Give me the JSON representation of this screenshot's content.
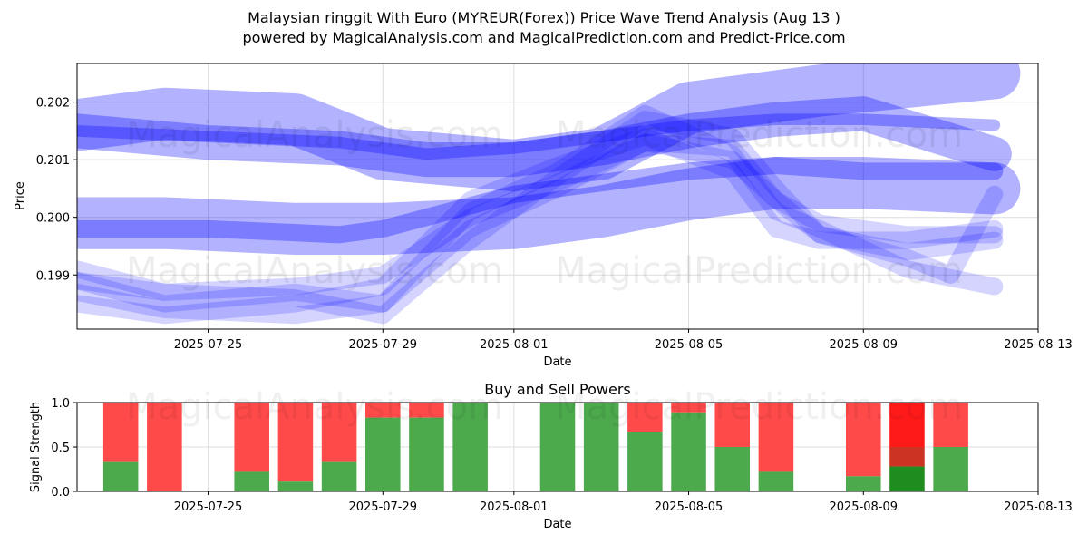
{
  "header": {
    "title_line1": "Malaysian ringgit With Euro (MYREUR(Forex)) Price Wave Trend Analysis (Aug 13 )",
    "title_line2": "powered by MagicalAnalysis.com and MagicalPrediction.com and Predict-Price.com"
  },
  "watermarks": [
    "MagicalAnalysis.com",
    "MagicalPrediction.com"
  ],
  "colors": {
    "band": "#0000ff",
    "buy": "#4caa4c",
    "sell": "#ff4a4a",
    "sell_strong": "#ff1a1a",
    "sell_dark": "#cc3322",
    "buy_strong": "#1e8c1e",
    "grid": "#dddddd"
  },
  "chart_data": [
    {
      "type": "area",
      "title": "",
      "xlabel": "Date",
      "ylabel": "Price",
      "xlim": [
        "2025-07-22",
        "2025-08-13"
      ],
      "ylim": [
        0.19806,
        0.20267
      ],
      "x_ticks": [
        "2025-07-25",
        "2025-07-29",
        "2025-08-01",
        "2025-08-05",
        "2025-08-09",
        "2025-08-13"
      ],
      "y_ticks": [
        0.199,
        0.2,
        0.201,
        0.202
      ],
      "y_tick_labels": [
        "0.199",
        "0.200",
        "0.201",
        "0.202"
      ],
      "grid": true,
      "series": [
        {
          "width": 0.0009,
          "points": [
            [
              "2025-07-22",
              0.2016
            ],
            [
              "2025-07-24",
              0.2018
            ],
            [
              "2025-07-27",
              0.2017
            ],
            [
              "2025-07-29",
              0.2011
            ],
            [
              "2025-08-01",
              0.2009
            ],
            [
              "2025-08-03",
              0.2011
            ],
            [
              "2025-08-05",
              0.2019
            ],
            [
              "2025-08-08",
              0.2022
            ],
            [
              "2025-08-12",
              0.2025
            ]
          ]
        },
        {
          "width": 0.0006,
          "points": [
            [
              "2025-07-22",
              0.2015
            ],
            [
              "2025-07-25",
              0.2013
            ],
            [
              "2025-07-28",
              0.2012
            ],
            [
              "2025-07-30",
              0.201
            ],
            [
              "2025-08-01",
              0.201
            ],
            [
              "2025-08-03",
              0.2012
            ],
            [
              "2025-08-05",
              0.2015
            ],
            [
              "2025-08-07",
              0.2017
            ],
            [
              "2025-08-09",
              0.2018
            ],
            [
              "2025-08-12",
              0.2011
            ]
          ]
        },
        {
          "width": 0.0002,
          "points": [
            [
              "2025-07-22",
              0.2015
            ],
            [
              "2025-07-25",
              0.2014
            ],
            [
              "2025-07-28",
              0.2013
            ],
            [
              "2025-07-30",
              0.2011
            ],
            [
              "2025-08-01",
              0.2012
            ],
            [
              "2025-08-03",
              0.2014
            ],
            [
              "2025-08-05",
              0.2016
            ],
            [
              "2025-08-07",
              0.2017
            ],
            [
              "2025-08-09",
              0.2017
            ],
            [
              "2025-08-12",
              0.2016
            ]
          ]
        },
        {
          "width": 0.0009,
          "points": [
            [
              "2025-07-22",
              0.1999
            ],
            [
              "2025-07-24",
              0.1999
            ],
            [
              "2025-07-27",
              0.1998
            ],
            [
              "2025-07-29",
              0.1998
            ],
            [
              "2025-08-01",
              0.1999
            ],
            [
              "2025-08-03",
              0.2001
            ],
            [
              "2025-08-05",
              0.2004
            ],
            [
              "2025-08-07",
              0.2006
            ],
            [
              "2025-08-09",
              0.2006
            ],
            [
              "2025-08-12",
              0.2005
            ]
          ]
        },
        {
          "width": 0.0003,
          "points": [
            [
              "2025-07-22",
              0.1998
            ],
            [
              "2025-07-25",
              0.1998
            ],
            [
              "2025-07-28",
              0.1997
            ],
            [
              "2025-07-29",
              0.1998
            ],
            [
              "2025-08-01",
              0.2004
            ],
            [
              "2025-08-03",
              0.2006
            ],
            [
              "2025-08-05",
              0.2008
            ],
            [
              "2025-08-07",
              0.2009
            ],
            [
              "2025-08-09",
              0.2008
            ],
            [
              "2025-08-12",
              0.2008
            ]
          ]
        },
        {
          "width": 0.0003,
          "points": [
            [
              "2025-07-22",
              0.1989
            ],
            [
              "2025-07-24",
              0.1985
            ],
            [
              "2025-07-27",
              0.1987
            ],
            [
              "2025-07-29",
              0.1985
            ],
            [
              "2025-07-31",
              0.1998
            ],
            [
              "2025-08-02",
              0.2005
            ],
            [
              "2025-08-04",
              0.2013
            ],
            [
              "2025-08-06",
              0.2012
            ],
            [
              "2025-08-07",
              0.2003
            ],
            [
              "2025-08-08",
              0.1997
            ],
            [
              "2025-08-10",
              0.1993
            ],
            [
              "2025-08-11",
              0.199
            ],
            [
              "2025-08-12",
              0.2004
            ]
          ]
        },
        {
          "width": 0.0003,
          "points": [
            [
              "2025-07-22",
              0.1991
            ],
            [
              "2025-07-24",
              0.1987
            ],
            [
              "2025-07-27",
              0.1986
            ],
            [
              "2025-07-29",
              0.1983
            ],
            [
              "2025-07-31",
              0.1996
            ],
            [
              "2025-08-02",
              0.2007
            ],
            [
              "2025-08-04",
              0.2017
            ],
            [
              "2025-08-06",
              0.2014
            ],
            [
              "2025-08-07",
              0.2005
            ],
            [
              "2025-08-08",
              0.1997
            ],
            [
              "2025-08-10",
              0.1994
            ],
            [
              "2025-08-12",
              0.1996
            ]
          ]
        },
        {
          "width": 0.0003,
          "points": [
            [
              "2025-07-22",
              0.1987
            ],
            [
              "2025-07-24",
              0.1984
            ],
            [
              "2025-07-27",
              0.1983
            ],
            [
              "2025-07-29",
              0.1985
            ],
            [
              "2025-07-31",
              0.2001
            ],
            [
              "2025-08-02",
              0.2008
            ],
            [
              "2025-08-04",
              0.2018
            ],
            [
              "2025-08-06",
              0.2011
            ],
            [
              "2025-08-07",
              0.2001
            ],
            [
              "2025-08-08",
              0.1998
            ],
            [
              "2025-08-10",
              0.1991
            ],
            [
              "2025-08-12",
              0.1988
            ]
          ]
        },
        {
          "width": 0.0003,
          "points": [
            [
              "2025-07-22",
              0.1985
            ],
            [
              "2025-07-24",
              0.1983
            ],
            [
              "2025-07-27",
              0.1985
            ],
            [
              "2025-07-29",
              0.1988
            ],
            [
              "2025-07-31",
              0.2003
            ],
            [
              "2025-08-02",
              0.2009
            ],
            [
              "2025-08-04",
              0.2014
            ],
            [
              "2025-08-06",
              0.2008
            ],
            [
              "2025-08-07",
              0.1998
            ],
            [
              "2025-08-08",
              0.1996
            ],
            [
              "2025-08-10",
              0.1996
            ],
            [
              "2025-08-12",
              0.1998
            ]
          ]
        },
        {
          "width": 0.0003,
          "points": [
            [
              "2025-07-22",
              0.1989
            ],
            [
              "2025-07-24",
              0.1987
            ],
            [
              "2025-07-27",
              0.1988
            ],
            [
              "2025-07-29",
              0.199
            ],
            [
              "2025-07-31",
              0.2
            ],
            [
              "2025-08-02",
              0.2006
            ],
            [
              "2025-08-04",
              0.2013
            ],
            [
              "2025-08-06",
              0.201
            ],
            [
              "2025-08-07",
              0.2003
            ],
            [
              "2025-08-08",
              0.1999
            ],
            [
              "2025-08-10",
              0.1997
            ],
            [
              "2025-08-12",
              0.1997
            ]
          ]
        }
      ]
    },
    {
      "type": "bar",
      "title": "Buy and Sell Powers",
      "xlabel": "Date",
      "ylabel": "Signal Strength",
      "xlim": [
        "2025-07-22",
        "2025-08-13"
      ],
      "ylim": [
        0,
        1.0
      ],
      "x_ticks": [
        "2025-07-25",
        "2025-07-29",
        "2025-08-01",
        "2025-08-05",
        "2025-08-09",
        "2025-08-13"
      ],
      "y_ticks": [
        0.0,
        0.5,
        1.0
      ],
      "y_tick_labels": [
        "0.0",
        "0.5",
        "1.0"
      ],
      "grid": true,
      "stack": [
        "buy",
        "sell"
      ],
      "categories": [
        "2025-07-23",
        "2025-07-24",
        "2025-07-26",
        "2025-07-27",
        "2025-07-28",
        "2025-07-29",
        "2025-07-30",
        "2025-07-31",
        "2025-08-02",
        "2025-08-03",
        "2025-08-04",
        "2025-08-05",
        "2025-08-06",
        "2025-08-07",
        "2025-08-09",
        "2025-08-10",
        "2025-08-11"
      ],
      "series": [
        {
          "values": [
            0.33,
            0.0,
            0.22,
            0.11,
            0.33,
            0.83,
            0.83,
            1.0,
            1.0,
            1.0,
            0.67,
            0.89,
            0.5,
            0.22,
            0.17,
            0.28,
            0.5
          ]
        },
        {
          "values": [
            0.67,
            1.0,
            0.78,
            0.89,
            0.67,
            0.17,
            0.17,
            0.0,
            0.0,
            0.0,
            0.33,
            0.11,
            0.5,
            0.78,
            0.83,
            0.72,
            0.5
          ]
        }
      ]
    }
  ]
}
